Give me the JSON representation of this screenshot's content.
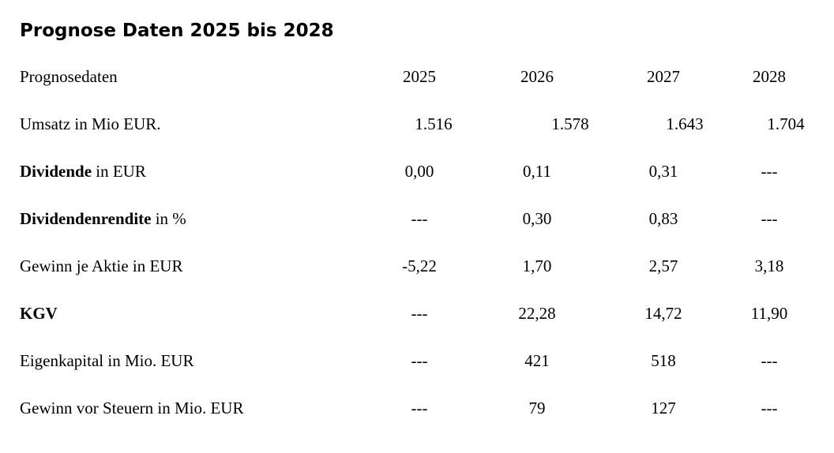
{
  "title": "Prognose Daten 2025 bis 2028",
  "header": {
    "label": "Prognosedaten",
    "years": [
      "2025",
      "2026",
      "2027",
      "2028"
    ]
  },
  "rows": [
    {
      "label_bold": "",
      "label_rest": "Umsatz in Mio EUR.",
      "values": [
        "1.516",
        "1.578",
        "1.643",
        "1.704"
      ]
    },
    {
      "label_bold": "Dividende",
      "label_rest": " in EUR",
      "values": [
        "0,00",
        "0,11",
        "0,31",
        "---"
      ]
    },
    {
      "label_bold": "Dividendenrendite",
      "label_rest": " in %",
      "values": [
        "---",
        "0,30",
        "0,83",
        "---"
      ]
    },
    {
      "label_bold": "",
      "label_rest": "Gewinn je Aktie in EUR",
      "values": [
        "-5,22",
        "1,70",
        "2,57",
        "3,18"
      ]
    },
    {
      "label_bold": "KGV",
      "label_rest": "",
      "values": [
        "---",
        "22,28",
        "14,72",
        "11,90"
      ]
    },
    {
      "label_bold": "",
      "label_rest": "Eigenkapital in Mio. EUR",
      "values": [
        "---",
        "421",
        "518",
        "---"
      ]
    },
    {
      "label_bold": "",
      "label_rest": "Gewinn vor Steuern in Mio. EUR",
      "values": [
        "---",
        "79",
        "127",
        "---"
      ]
    }
  ]
}
